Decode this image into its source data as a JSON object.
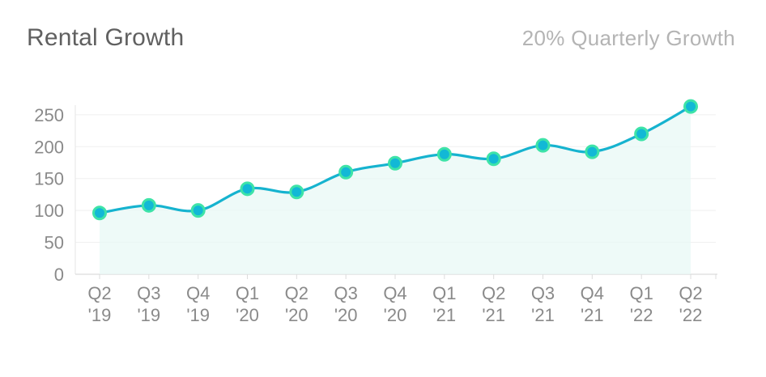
{
  "header": {
    "title": "Rental Growth",
    "subtitle": "20% Quarterly Growth"
  },
  "colors": {
    "line": "#16b3cf",
    "area": "#e8f8f5",
    "marker_fill": "#12b8d6",
    "marker_ring": "#3ee3a8",
    "grid": "#efefef",
    "tick_text": "#8a8a8a"
  },
  "chart_data": {
    "type": "area",
    "title": "Rental Growth",
    "subtitle": "20% Quarterly Growth",
    "xlabel": "",
    "ylabel": "",
    "categories": [
      [
        "Q2",
        "'19"
      ],
      [
        "Q3",
        "'19"
      ],
      [
        "Q4",
        "'19"
      ],
      [
        "Q1",
        "'20"
      ],
      [
        "Q2",
        "'20"
      ],
      [
        "Q3",
        "'20"
      ],
      [
        "Q4",
        "'20"
      ],
      [
        "Q1",
        "'21"
      ],
      [
        "Q2",
        "'21"
      ],
      [
        "Q3",
        "'21"
      ],
      [
        "Q4",
        "'21"
      ],
      [
        "Q1",
        "'22"
      ],
      [
        "Q2",
        "'22"
      ]
    ],
    "values": [
      96,
      108,
      100,
      134,
      129,
      160,
      174,
      188,
      181,
      202,
      192,
      220,
      263
    ],
    "ylim": [
      0,
      265
    ],
    "yticks": [
      0,
      50,
      100,
      150,
      200,
      250
    ],
    "grid": true,
    "legend": "none",
    "smooth": true
  }
}
